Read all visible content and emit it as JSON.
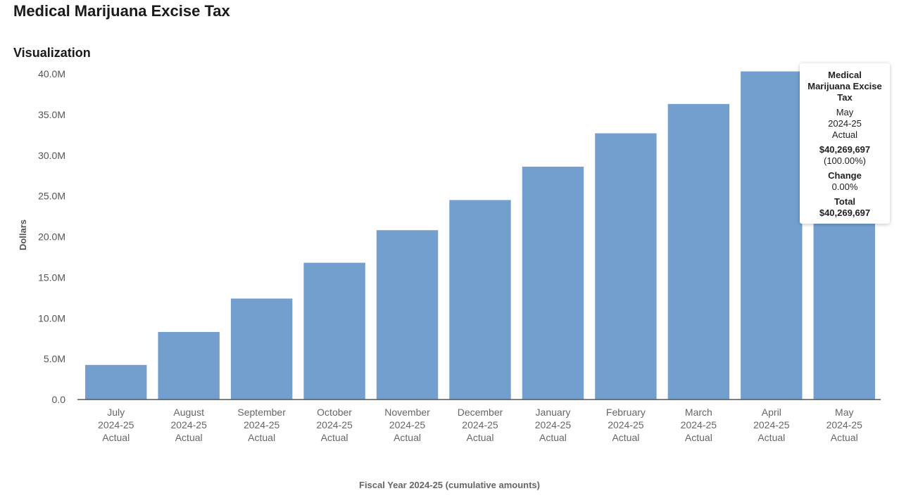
{
  "page": {
    "title": "Medical Marijuana Excise Tax",
    "section_title": "Visualization"
  },
  "chart_data": {
    "type": "bar",
    "title": "",
    "xlabel": "Fiscal Year 2024-25 (cumulative amounts)",
    "ylabel": "Dollars",
    "ylim": [
      0,
      40000000
    ],
    "yticks": [
      "0.0",
      "5.0M",
      "10.0M",
      "15.0M",
      "20.0M",
      "25.0M",
      "30.0M",
      "35.0M",
      "40.0M"
    ],
    "ytick_values": [
      0,
      5000000,
      10000000,
      15000000,
      20000000,
      25000000,
      30000000,
      35000000,
      40000000
    ],
    "categories": [
      [
        "July",
        "2024-25",
        "Actual"
      ],
      [
        "August",
        "2024-25",
        "Actual"
      ],
      [
        "September",
        "2024-25",
        "Actual"
      ],
      [
        "October",
        "2024-25",
        "Actual"
      ],
      [
        "November",
        "2024-25",
        "Actual"
      ],
      [
        "December",
        "2024-25",
        "Actual"
      ],
      [
        "January",
        "2024-25",
        "Actual"
      ],
      [
        "February",
        "2024-25",
        "Actual"
      ],
      [
        "March",
        "2024-25",
        "Actual"
      ],
      [
        "April",
        "2024-25",
        "Actual"
      ],
      [
        "May",
        "2024-25",
        "Actual"
      ]
    ],
    "values": [
      4250000,
      8300000,
      12400000,
      16800000,
      20800000,
      24500000,
      28600000,
      32700000,
      36300000,
      40300000,
      40269697
    ],
    "bar_color": "#739fcf",
    "grid": false,
    "legend": "none"
  },
  "tooltip": {
    "title_lines": [
      "Medical",
      "Marijuana Excise",
      "Tax"
    ],
    "category_lines": [
      "May",
      "2024-25",
      "Actual"
    ],
    "value": "$40,269,697",
    "percent": "(100.00%)",
    "change_label": "Change",
    "change_value": "0.00%",
    "total_label": "Total",
    "total_value": "$40,269,697"
  }
}
